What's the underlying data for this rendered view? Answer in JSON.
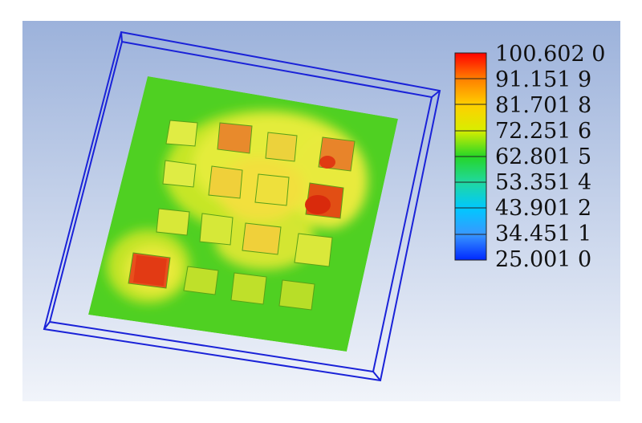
{
  "legend": {
    "labels": [
      "100.602 0",
      "91.151 9",
      "81.701 8",
      "72.251 6",
      "62.801 5",
      "53.351 4",
      "43.901 2",
      "34.451 1",
      "25.001 0"
    ],
    "colors": [
      "#ff0000",
      "#ff7f00",
      "#ffcf00",
      "#d8ee00",
      "#26d626",
      "#20d8a0",
      "#00c8ff",
      "#3898ff",
      "#0028ff"
    ]
  },
  "colors": {
    "background_top": "#9fb4dc",
    "background_bottom": "#f1f4fa",
    "outline": "#1a22d8",
    "board_base": "#4fd022",
    "warm_zone": "#e2ec38",
    "hot_zone": "#f5dc30",
    "chip_hot": "#e84c14",
    "chip_warm": "#f0a020"
  }
}
